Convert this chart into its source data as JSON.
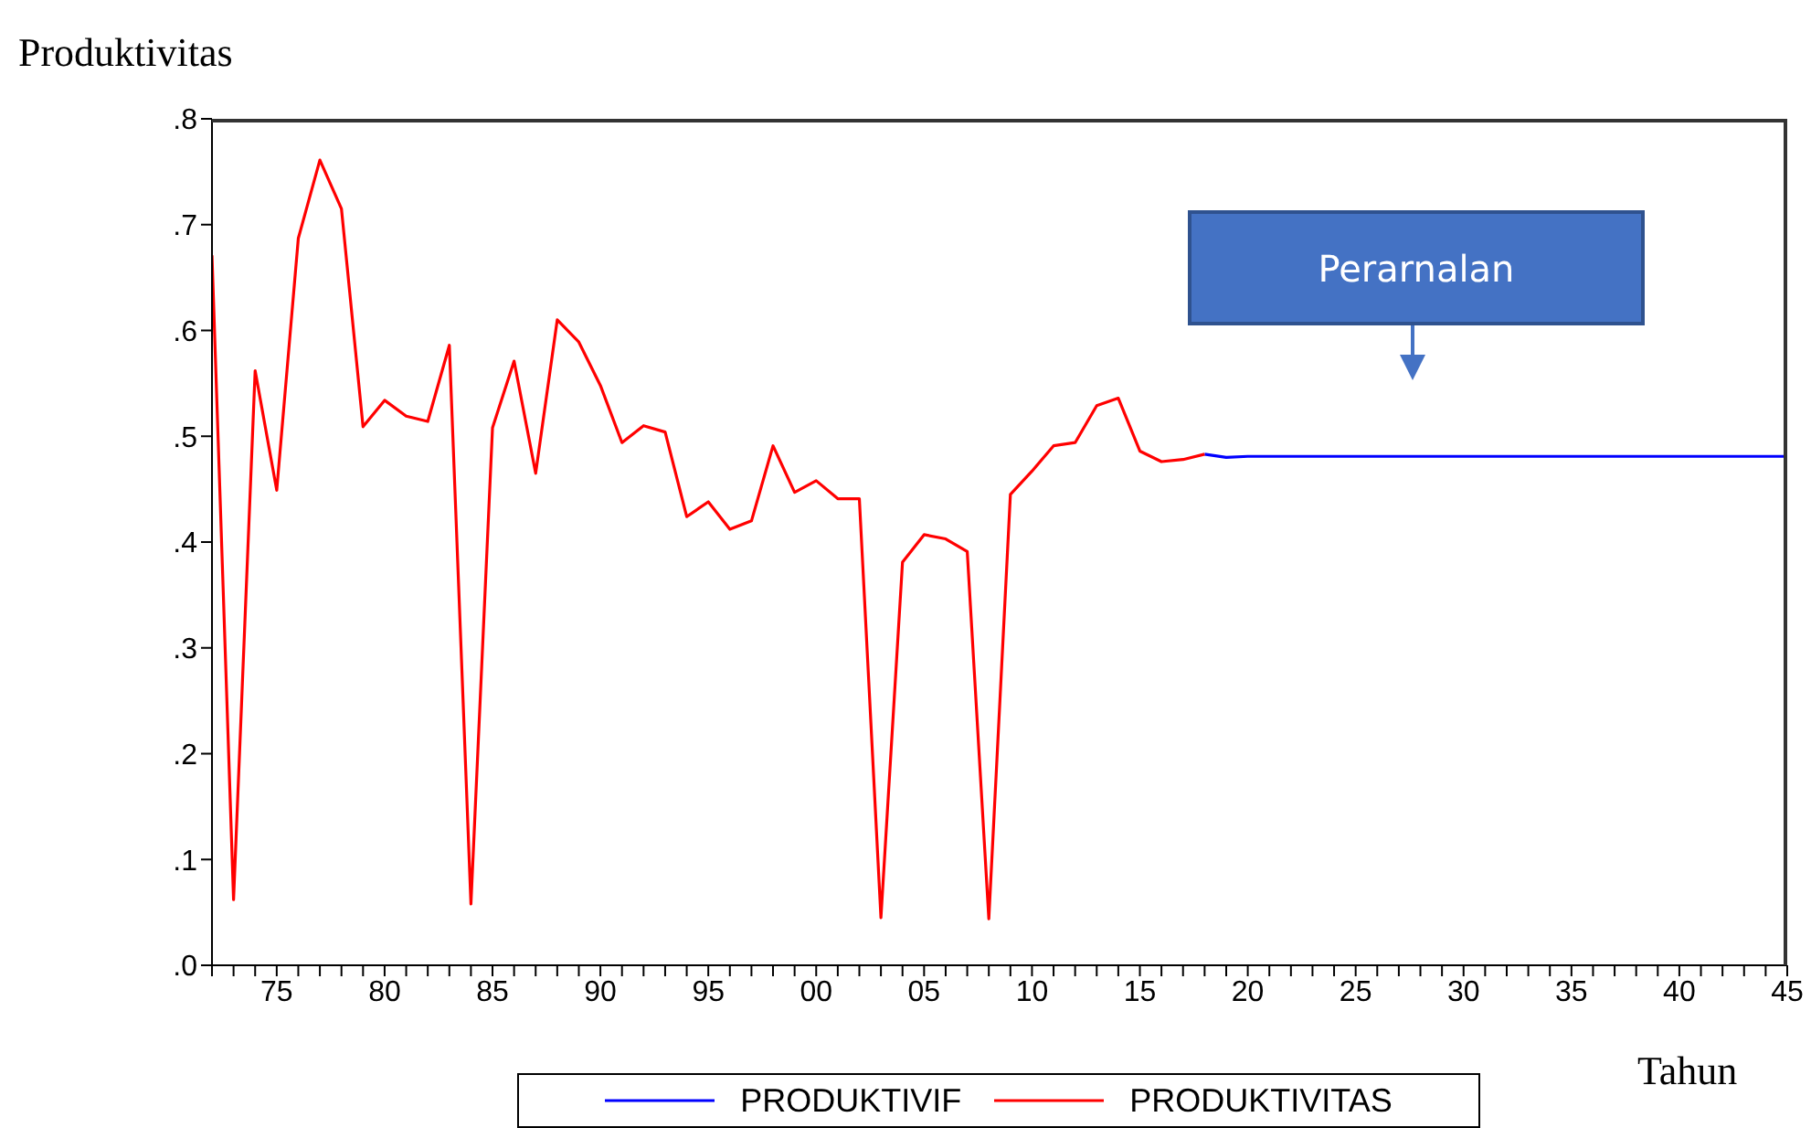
{
  "chart_data": {
    "type": "line",
    "ylabel": "Produktivitas",
    "xlabel": "Tahun",
    "annotations": [
      "Perarnalan"
    ],
    "x": [
      1972,
      1973,
      1974,
      1975,
      1976,
      1977,
      1978,
      1979,
      1980,
      1981,
      1982,
      1983,
      1984,
      1985,
      1986,
      1987,
      1988,
      1989,
      1990,
      1991,
      1992,
      1993,
      1994,
      1995,
      1996,
      1997,
      1998,
      1999,
      2000,
      2001,
      2002,
      2003,
      2004,
      2005,
      2006,
      2007,
      2008,
      2009,
      2010,
      2011,
      2012,
      2013,
      2014,
      2015,
      2016,
      2017,
      2018,
      2019,
      2020,
      2021,
      2022,
      2023,
      2024,
      2025,
      2026,
      2027,
      2028,
      2029,
      2030,
      2031,
      2032,
      2033,
      2034,
      2035,
      2036,
      2037,
      2038,
      2039,
      2040,
      2041,
      2042,
      2043,
      2044,
      2045
    ],
    "series": [
      {
        "name": "PRODUKTIVIF",
        "color": "#0000ff",
        "values": [
          null,
          null,
          null,
          null,
          null,
          null,
          null,
          null,
          null,
          null,
          null,
          null,
          null,
          null,
          null,
          null,
          null,
          null,
          null,
          null,
          null,
          null,
          null,
          null,
          null,
          null,
          null,
          null,
          null,
          null,
          null,
          null,
          null,
          null,
          null,
          null,
          null,
          null,
          null,
          null,
          null,
          null,
          null,
          null,
          null,
          null,
          0.483,
          0.48,
          0.481,
          0.481,
          0.481,
          0.481,
          0.481,
          0.481,
          0.481,
          0.481,
          0.481,
          0.481,
          0.481,
          0.481,
          0.481,
          0.481,
          0.481,
          0.481,
          0.481,
          0.481,
          0.481,
          0.481,
          0.481,
          0.481,
          0.481,
          0.481,
          0.481,
          0.481
        ]
      },
      {
        "name": "PRODUKTIVITAS",
        "color": "#ff0000",
        "values": [
          0.671,
          0.062,
          0.562,
          0.449,
          0.687,
          0.761,
          0.715,
          0.509,
          0.534,
          0.519,
          0.514,
          0.586,
          0.058,
          0.508,
          0.571,
          0.465,
          0.61,
          0.589,
          0.548,
          0.494,
          0.51,
          0.504,
          0.424,
          0.438,
          0.412,
          0.42,
          0.491,
          0.447,
          0.458,
          0.441,
          0.441,
          0.045,
          0.381,
          0.407,
          0.403,
          0.391,
          0.044,
          0.445,
          0.467,
          0.491,
          0.494,
          0.529,
          0.536,
          0.486,
          0.476,
          0.478,
          0.483,
          null,
          null,
          null,
          null,
          null,
          null,
          null,
          null,
          null,
          null,
          null,
          null,
          null,
          null,
          null,
          null,
          null,
          null,
          null,
          null,
          null,
          null,
          null,
          null,
          null,
          null,
          null
        ]
      }
    ],
    "xlim": [
      1972,
      2045
    ],
    "xticks": [
      {
        "value": 1972,
        "label": null
      },
      {
        "value": 1973,
        "label": null
      },
      {
        "value": 1974,
        "label": null
      },
      {
        "value": 1975,
        "label": "75"
      },
      {
        "value": 1976,
        "label": null
      },
      {
        "value": 1977,
        "label": null
      },
      {
        "value": 1978,
        "label": null
      },
      {
        "value": 1979,
        "label": null
      },
      {
        "value": 1980,
        "label": "80"
      },
      {
        "value": 1981,
        "label": null
      },
      {
        "value": 1982,
        "label": null
      },
      {
        "value": 1983,
        "label": null
      },
      {
        "value": 1984,
        "label": null
      },
      {
        "value": 1985,
        "label": "85"
      },
      {
        "value": 1986,
        "label": null
      },
      {
        "value": 1987,
        "label": null
      },
      {
        "value": 1988,
        "label": null
      },
      {
        "value": 1989,
        "label": null
      },
      {
        "value": 1990,
        "label": "90"
      },
      {
        "value": 1991,
        "label": null
      },
      {
        "value": 1992,
        "label": null
      },
      {
        "value": 1993,
        "label": null
      },
      {
        "value": 1994,
        "label": null
      },
      {
        "value": 1995,
        "label": "95"
      },
      {
        "value": 1996,
        "label": null
      },
      {
        "value": 1997,
        "label": null
      },
      {
        "value": 1998,
        "label": null
      },
      {
        "value": 1999,
        "label": null
      },
      {
        "value": 2000,
        "label": "00"
      },
      {
        "value": 2001,
        "label": null
      },
      {
        "value": 2002,
        "label": null
      },
      {
        "value": 2003,
        "label": null
      },
      {
        "value": 2004,
        "label": null
      },
      {
        "value": 2005,
        "label": "05"
      },
      {
        "value": 2006,
        "label": null
      },
      {
        "value": 2007,
        "label": null
      },
      {
        "value": 2008,
        "label": null
      },
      {
        "value": 2009,
        "label": null
      },
      {
        "value": 2010,
        "label": "10"
      },
      {
        "value": 2011,
        "label": null
      },
      {
        "value": 2012,
        "label": null
      },
      {
        "value": 2013,
        "label": null
      },
      {
        "value": 2014,
        "label": null
      },
      {
        "value": 2015,
        "label": "15"
      },
      {
        "value": 2016,
        "label": null
      },
      {
        "value": 2017,
        "label": null
      },
      {
        "value": 2018,
        "label": null
      },
      {
        "value": 2019,
        "label": null
      },
      {
        "value": 2020,
        "label": "20"
      },
      {
        "value": 2021,
        "label": null
      },
      {
        "value": 2022,
        "label": null
      },
      {
        "value": 2023,
        "label": null
      },
      {
        "value": 2024,
        "label": null
      },
      {
        "value": 2025,
        "label": "25"
      },
      {
        "value": 2026,
        "label": null
      },
      {
        "value": 2027,
        "label": null
      },
      {
        "value": 2028,
        "label": null
      },
      {
        "value": 2029,
        "label": null
      },
      {
        "value": 2030,
        "label": "30"
      },
      {
        "value": 2031,
        "label": null
      },
      {
        "value": 2032,
        "label": null
      },
      {
        "value": 2033,
        "label": null
      },
      {
        "value": 2034,
        "label": null
      },
      {
        "value": 2035,
        "label": "35"
      },
      {
        "value": 2036,
        "label": null
      },
      {
        "value": 2037,
        "label": null
      },
      {
        "value": 2038,
        "label": null
      },
      {
        "value": 2039,
        "label": null
      },
      {
        "value": 2040,
        "label": "40"
      },
      {
        "value": 2041,
        "label": null
      },
      {
        "value": 2042,
        "label": null
      },
      {
        "value": 2043,
        "label": null
      },
      {
        "value": 2044,
        "label": null
      },
      {
        "value": 2045,
        "label": "45"
      }
    ],
    "ylim": [
      0,
      0.8
    ],
    "yticks": [
      {
        "value": 0,
        "label": ".0"
      },
      {
        "value": 0.1,
        "label": ".1"
      },
      {
        "value": 0.2,
        "label": ".2"
      },
      {
        "value": 0.3,
        "label": ".3"
      },
      {
        "value": 0.4,
        "label": ".4"
      },
      {
        "value": 0.5,
        "label": ".5"
      },
      {
        "value": 0.6,
        "label": ".6"
      },
      {
        "value": 0.7,
        "label": ".7"
      },
      {
        "value": 0.8,
        "label": ".8"
      }
    ],
    "legend": "bottom",
    "marker": "none",
    "line_style": "solid"
  }
}
